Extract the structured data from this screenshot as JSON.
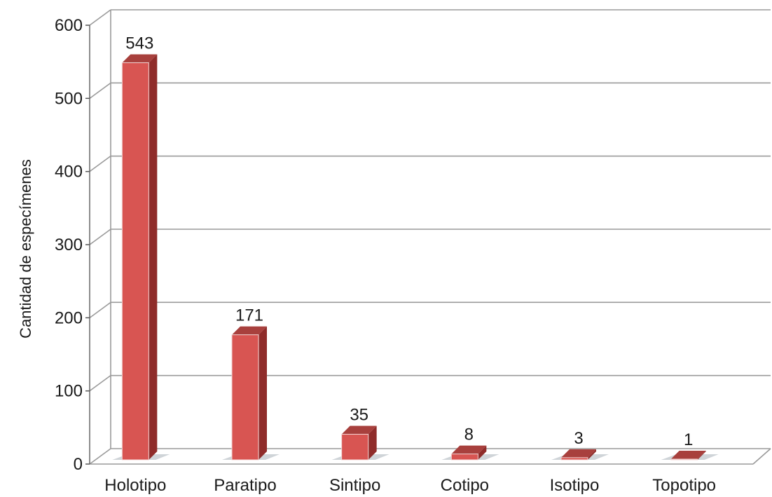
{
  "chart_data": {
    "type": "bar",
    "title": "",
    "xlabel": "",
    "ylabel": "Cantidad de especímenes",
    "ylim": [
      0,
      600
    ],
    "yticks": [
      0,
      100,
      200,
      300,
      400,
      500,
      600
    ],
    "categories": [
      "Holotipo",
      "Paratipo",
      "Sintipo",
      "Cotipo",
      "Isotipo",
      "Topotipo"
    ],
    "values": [
      543,
      171,
      35,
      8,
      3,
      1
    ],
    "data_labels": [
      "543",
      "171",
      "35",
      "8",
      "3",
      "1"
    ],
    "grid": true,
    "legend": "none",
    "colors": {
      "bar_front": "#d85552",
      "bar_side": "#8f2c2a",
      "bar_top": "#a8403d",
      "grid": "#9a9a9a",
      "floor_shadow": "#cfd4d8"
    }
  }
}
